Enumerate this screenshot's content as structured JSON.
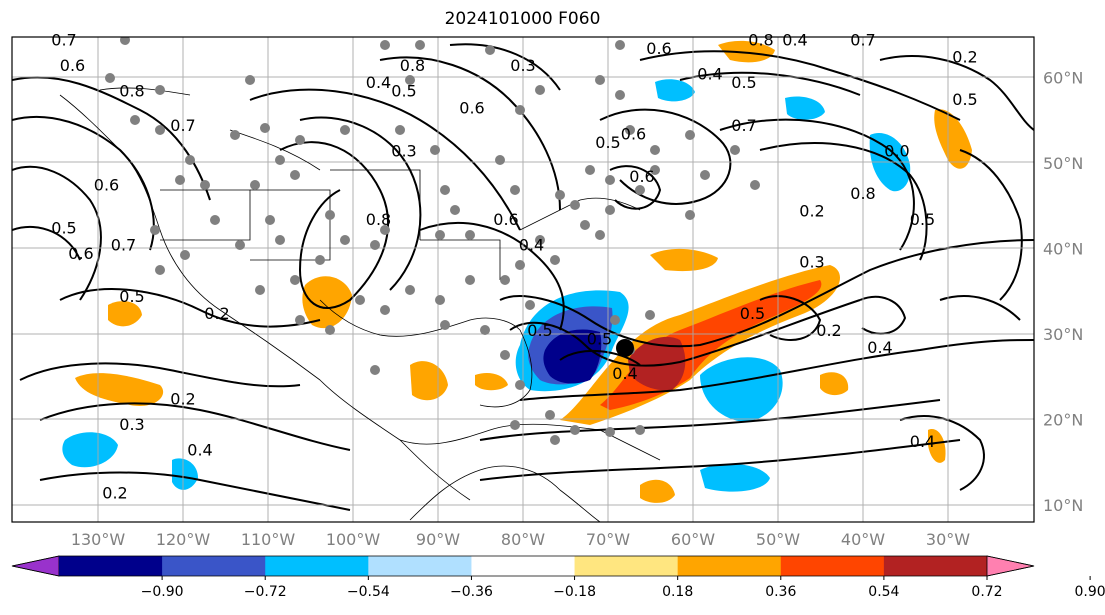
{
  "title": "2024101000 F060",
  "map": {
    "lat_labels": [
      {
        "lat": 60,
        "text": "60°N"
      },
      {
        "lat": 50,
        "text": "50°N"
      },
      {
        "lat": 40,
        "text": "40°N"
      },
      {
        "lat": 30,
        "text": "30°N"
      },
      {
        "lat": 20,
        "text": "20°N"
      },
      {
        "lat": 10,
        "text": "10°N"
      }
    ],
    "lon_labels": [
      {
        "lon": -130,
        "text": "130°W"
      },
      {
        "lon": -120,
        "text": "120°W"
      },
      {
        "lon": -110,
        "text": "110°W"
      },
      {
        "lon": -100,
        "text": "100°W"
      },
      {
        "lon": -90,
        "text": "90°W"
      },
      {
        "lon": -80,
        "text": "80°W"
      },
      {
        "lon": -70,
        "text": "70°W"
      },
      {
        "lon": -60,
        "text": "60°W"
      },
      {
        "lon": -50,
        "text": "50°W"
      },
      {
        "lon": -40,
        "text": "40°W"
      },
      {
        "lon": -30,
        "text": "30°W"
      }
    ],
    "contour_labels": [
      {
        "text": "0.7",
        "lon": -134,
        "lat": 64
      },
      {
        "text": "0.6",
        "lon": -133,
        "lat": 61
      },
      {
        "text": "0.8",
        "lon": -126,
        "lat": 58
      },
      {
        "text": "0.7",
        "lon": -120,
        "lat": 54
      },
      {
        "text": "0.6",
        "lon": -129,
        "lat": 47
      },
      {
        "text": "0.5",
        "lon": -134,
        "lat": 42
      },
      {
        "text": "0.6",
        "lon": -132,
        "lat": 39
      },
      {
        "text": "0.7",
        "lon": -127,
        "lat": 40
      },
      {
        "text": "0.5",
        "lon": -126,
        "lat": 34
      },
      {
        "text": "0.4",
        "lon": -97,
        "lat": 59
      },
      {
        "text": "0.5",
        "lon": -94,
        "lat": 58
      },
      {
        "text": "0.8",
        "lon": -93,
        "lat": 61
      },
      {
        "text": "0.6",
        "lon": -86,
        "lat": 56
      },
      {
        "text": "0.3",
        "lon": -80,
        "lat": 61
      },
      {
        "text": "0.8",
        "lon": -97,
        "lat": 43
      },
      {
        "text": "0.3",
        "lon": -94,
        "lat": 51
      },
      {
        "text": "0.2",
        "lon": -116,
        "lat": 32
      },
      {
        "text": "0.6",
        "lon": -82,
        "lat": 43
      },
      {
        "text": "0.4",
        "lon": -79,
        "lat": 40
      },
      {
        "text": "0.2",
        "lon": -120,
        "lat": 22
      },
      {
        "text": "0.3",
        "lon": -126,
        "lat": 19
      },
      {
        "text": "0.4",
        "lon": -118,
        "lat": 16
      },
      {
        "text": "0.2",
        "lon": -128,
        "lat": 11
      },
      {
        "text": "0.5",
        "lon": -71,
        "lat": 29
      },
      {
        "text": "0.4",
        "lon": -68,
        "lat": 25
      },
      {
        "text": "0.5",
        "lon": -78,
        "lat": 30
      },
      {
        "text": "0.6",
        "lon": -64,
        "lat": 63
      },
      {
        "text": "0.4",
        "lon": -58,
        "lat": 60
      },
      {
        "text": "0.5",
        "lon": -54,
        "lat": 59
      },
      {
        "text": "0.8",
        "lon": -52,
        "lat": 64
      },
      {
        "text": "0.4",
        "lon": -48,
        "lat": 64
      },
      {
        "text": "0.7",
        "lon": -40,
        "lat": 64
      },
      {
        "text": "0.6",
        "lon": -67,
        "lat": 53
      },
      {
        "text": "0.5",
        "lon": -70,
        "lat": 52
      },
      {
        "text": "0.6",
        "lon": -66,
        "lat": 48
      },
      {
        "text": "0.7",
        "lon": -54,
        "lat": 54
      },
      {
        "text": "0.2",
        "lon": -46,
        "lat": 44
      },
      {
        "text": "0.8",
        "lon": -40,
        "lat": 46
      },
      {
        "text": "0.3",
        "lon": -46,
        "lat": 38
      },
      {
        "text": "0.5",
        "lon": -53,
        "lat": 32
      },
      {
        "text": "0.2",
        "lon": -44,
        "lat": 30
      },
      {
        "text": "0.4",
        "lon": -38,
        "lat": 28
      },
      {
        "text": "0.0",
        "lon": -36,
        "lat": 51
      },
      {
        "text": "0.5",
        "lon": -33,
        "lat": 43
      },
      {
        "text": "0.4",
        "lon": -33,
        "lat": 17
      },
      {
        "text": "0.2",
        "lon": -28,
        "lat": 62
      },
      {
        "text": "0.5",
        "lon": -28,
        "lat": 57
      }
    ]
  },
  "colorbar": {
    "labels": [
      "−0.90",
      "−0.72",
      "−0.54",
      "−0.36",
      "−0.18",
      "0.18",
      "0.36",
      "0.54",
      "0.72",
      "0.90"
    ],
    "colors": [
      "#9932cc",
      "#00008b",
      "#3a55c8",
      "#00bfff",
      "#b0e0ff",
      "#ffffff",
      "#ffe680",
      "#ffa500",
      "#ff4500",
      "#b22222",
      "#ff80b0"
    ]
  },
  "legend_colors": {
    "grid": "#a9a9a9",
    "contour": "#000000",
    "station": "#808080",
    "marker": "#000000"
  }
}
